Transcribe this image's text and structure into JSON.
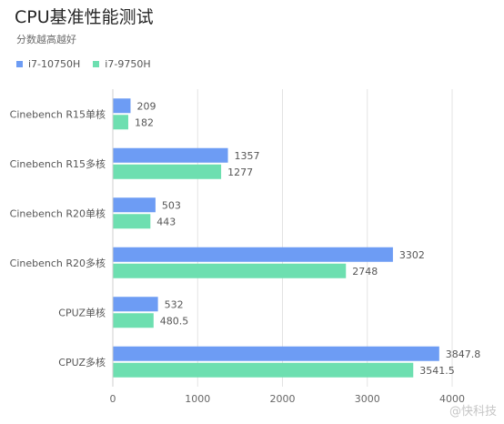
{
  "title": "CPU基准性能测试",
  "subtitle": "分数越高越好",
  "watermark": "@快科技",
  "colors": {
    "series0": "#6d9cf4",
    "series1": "#6ddfb0",
    "grid": "#e3e3e3",
    "label": "#555555"
  },
  "chart_data": {
    "type": "bar",
    "orientation": "horizontal",
    "title": "CPU基准性能测试",
    "subtitle": "分数越高越好",
    "categories": [
      "Cinebench R15单核",
      "Cinebench R15多核",
      "Cinebench R20单核",
      "Cinebench R20多核",
      "CPUZ单核",
      "CPUZ多核"
    ],
    "series": [
      {
        "name": "i7-10750H",
        "values": [
          209,
          1357,
          503,
          3302,
          532,
          3847.8
        ],
        "labels": [
          "209",
          "1357",
          "503",
          "3302",
          "532",
          "3847.8"
        ]
      },
      {
        "name": "i7-9750H",
        "values": [
          182,
          1277,
          443,
          2748,
          480.5,
          3541.5
        ],
        "labels": [
          "182",
          "1277",
          "443",
          "2748",
          "480.5",
          "3541.5"
        ]
      }
    ],
    "xlim": [
      0,
      4000
    ],
    "xticks": [
      "0",
      "1000",
      "2000",
      "3000",
      "4000"
    ],
    "grid": true,
    "legend_position": "top-left"
  }
}
